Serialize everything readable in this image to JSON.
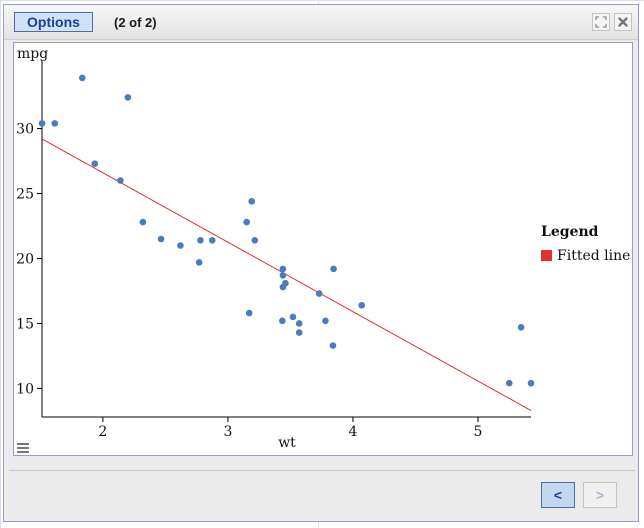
{
  "dialog": {
    "options_label": "Options",
    "page_indicator": "(2 of 2)",
    "expand_icon": "expand-icon",
    "close_icon": "close-icon"
  },
  "footer": {
    "prev_label": "<",
    "next_label": ">"
  },
  "colors": {
    "points": "#4a7ac0",
    "fitted_line": "#e03030",
    "accent": "#4a6fa8"
  },
  "chart_data": {
    "type": "scatter",
    "xlabel": "wt",
    "ylabel": "mpg",
    "xlim": [
      1.513,
      5.424
    ],
    "ylim": [
      7.8,
      35.2
    ],
    "xticks": [
      2,
      3,
      4,
      5
    ],
    "yticks": [
      10,
      15,
      20,
      25,
      30
    ],
    "legend": {
      "title": "Legend",
      "placement": "right",
      "entries": [
        "Fitted line"
      ]
    },
    "series": [
      {
        "type": "scatter",
        "x": [
          2.62,
          2.875,
          2.32,
          3.215,
          3.44,
          3.46,
          3.57,
          3.19,
          3.15,
          3.44,
          3.44,
          4.07,
          3.73,
          3.78,
          5.25,
          5.424,
          5.345,
          2.2,
          1.615,
          1.835,
          2.465,
          3.52,
          3.435,
          3.84,
          3.845,
          1.935,
          2.14,
          1.513,
          3.17,
          2.77,
          3.57,
          2.78
        ],
        "y": [
          21.0,
          21.4,
          22.8,
          21.4,
          18.7,
          18.1,
          14.3,
          24.4,
          22.8,
          19.2,
          17.8,
          16.4,
          17.3,
          15.2,
          10.4,
          10.4,
          14.7,
          32.4,
          30.4,
          33.9,
          21.5,
          15.5,
          15.2,
          13.3,
          19.2,
          27.3,
          26.0,
          30.4,
          15.8,
          19.7,
          15.0,
          21.4
        ]
      },
      {
        "name": "Fitted line",
        "type": "line",
        "x": [
          1.513,
          5.424
        ],
        "y": [
          29.2,
          8.3
        ]
      }
    ]
  }
}
